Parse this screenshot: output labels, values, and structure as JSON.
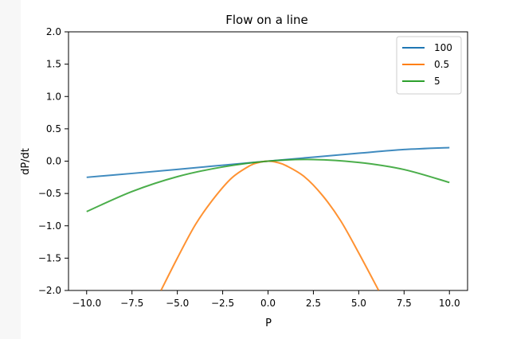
{
  "chart_data": {
    "type": "line",
    "title": "Flow on a line",
    "xlabel": "P",
    "ylabel": "dP/dt",
    "xlim": [
      -11,
      11
    ],
    "ylim": [
      -2.0,
      2.0
    ],
    "xticks": [
      -10.0,
      -7.5,
      -5.0,
      -2.5,
      0.0,
      2.5,
      5.0,
      7.5,
      10.0
    ],
    "xtick_labels": [
      "−10.0",
      "−7.5",
      "−5.0",
      "−2.5",
      "0.0",
      "2.5",
      "5.0",
      "7.5",
      "10.0"
    ],
    "yticks": [
      2.0,
      1.5,
      1.0,
      0.5,
      0.0,
      -0.5,
      -1.0,
      -1.5,
      -2.0
    ],
    "ytick_labels": [
      "2.0",
      "1.5",
      "1.0",
      "0.5",
      "0.0",
      "−0.5",
      "−1.0",
      "−1.5",
      "−2.0"
    ],
    "grid": false,
    "legend_position": "top-right",
    "series": [
      {
        "name": "100",
        "color": "#1f77b4",
        "x": [
          -10,
          -7.5,
          -5,
          -2.5,
          0,
          2.5,
          5,
          7.5,
          10
        ],
        "y": [
          -0.25,
          -0.19,
          -0.1275,
          -0.063,
          0,
          0.062,
          0.1225,
          0.18,
          0.21
        ]
      },
      {
        "name": "0.5",
        "color": "#ff7f0e",
        "x": [
          -5.9,
          -5,
          -4,
          -3,
          -2,
          -1,
          -0.5,
          0,
          0.5,
          1,
          2,
          3,
          4,
          5,
          6.1
        ],
        "y": [
          -2.0,
          -1.5,
          -0.98,
          -0.58,
          -0.26,
          -0.07,
          -0.02,
          0,
          -0.02,
          -0.07,
          -0.24,
          -0.53,
          -0.92,
          -1.42,
          -2.0
        ]
      },
      {
        "name": "5",
        "color": "#2ca02c",
        "x": [
          -10,
          -7.5,
          -5,
          -2.5,
          0,
          2.5,
          5,
          7.5,
          10
        ],
        "y": [
          -0.78,
          -0.47,
          -0.24,
          -0.09,
          0,
          0.025,
          -0.02,
          -0.13,
          -0.33
        ]
      }
    ]
  }
}
